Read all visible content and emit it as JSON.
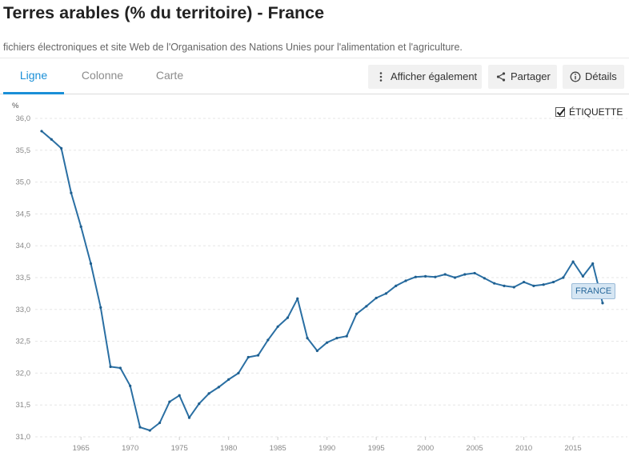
{
  "header": {
    "title": "Terres arables (% du territoire) - France",
    "source": "fichiers électroniques et site Web de l'Organisation des Nations Unies pour l'alimentation et l'agriculture."
  },
  "tabs": [
    {
      "label": "Ligne",
      "active": true
    },
    {
      "label": "Colonne",
      "active": false
    },
    {
      "label": "Carte",
      "active": false
    }
  ],
  "toolbar": {
    "also_label": "Afficher également",
    "share_label": "Partager",
    "details_label": "Détails"
  },
  "legend": {
    "label": "ÉTIQUETTE",
    "checked": true
  },
  "colors": {
    "accent": "#1a8fd7",
    "series": "#2a6fa3",
    "tag_bg": "#d6e6f3"
  },
  "chart_data": {
    "type": "line",
    "unit": "%",
    "ylim": [
      31.0,
      36.0
    ],
    "xlim": [
      1961,
      2018
    ],
    "y_ticks": [
      "31,0",
      "31,5",
      "32,0",
      "32,5",
      "33,0",
      "33,5",
      "34,0",
      "34,5",
      "35,0",
      "35,5",
      "36,0"
    ],
    "x_ticks": [
      "1965",
      "1970",
      "1975",
      "1980",
      "1985",
      "1990",
      "1995",
      "2000",
      "2005",
      "2010",
      "2015"
    ],
    "grid": true,
    "series": [
      {
        "name": "FRANCE",
        "x": [
          1961,
          1962,
          1963,
          1964,
          1965,
          1966,
          1967,
          1968,
          1969,
          1970,
          1971,
          1972,
          1973,
          1974,
          1975,
          1976,
          1977,
          1978,
          1979,
          1980,
          1981,
          1982,
          1983,
          1984,
          1985,
          1986,
          1987,
          1988,
          1989,
          1990,
          1991,
          1992,
          1993,
          1994,
          1995,
          1996,
          1997,
          1998,
          1999,
          2000,
          2001,
          2002,
          2003,
          2004,
          2005,
          2006,
          2007,
          2008,
          2009,
          2010,
          2011,
          2012,
          2013,
          2014,
          2015,
          2016,
          2017,
          2018
        ],
        "values": [
          35.8,
          35.67,
          35.53,
          34.83,
          34.3,
          33.72,
          33.03,
          32.1,
          32.08,
          31.8,
          31.15,
          31.1,
          31.22,
          31.55,
          31.65,
          31.3,
          31.52,
          31.68,
          31.78,
          31.9,
          32.0,
          32.25,
          32.28,
          32.52,
          32.73,
          32.87,
          33.17,
          32.55,
          32.35,
          32.48,
          32.55,
          32.58,
          32.93,
          33.05,
          33.18,
          33.25,
          33.37,
          33.45,
          33.51,
          33.52,
          33.51,
          33.55,
          33.5,
          33.55,
          33.57,
          33.49,
          33.41,
          33.37,
          33.35,
          33.43,
          33.37,
          33.39,
          33.43,
          33.5,
          33.75,
          33.52,
          33.72,
          33.1
        ]
      }
    ]
  }
}
